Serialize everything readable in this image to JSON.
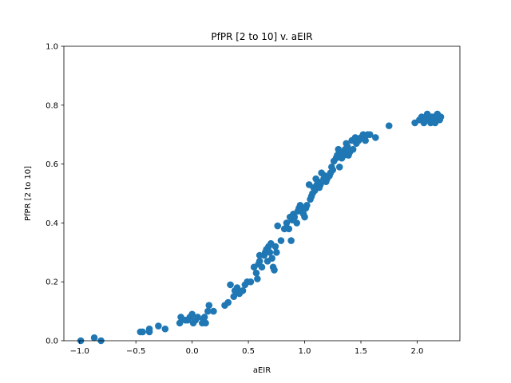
{
  "chart_data": {
    "type": "scatter",
    "title": "PfPR [2 to 10] v. aEIR",
    "xlabel": "aEIR",
    "ylabel": "PfPR [2 to 10]",
    "xlim": [
      -1.14,
      2.38
    ],
    "ylim": [
      0.0,
      1.0
    ],
    "xticks": [
      -1.0,
      -0.5,
      0.0,
      0.5,
      1.0,
      1.5,
      2.0
    ],
    "xtick_labels": [
      "−1.0",
      "−0.5",
      "0.0",
      "0.5",
      "1.0",
      "1.5",
      "2.0"
    ],
    "yticks": [
      0.0,
      0.2,
      0.4,
      0.6,
      0.8,
      1.0
    ],
    "ytick_labels": [
      "0.0",
      "0.2",
      "0.4",
      "0.6",
      "0.8",
      "1.0"
    ],
    "grid": false,
    "marker_color": "#1f77b4",
    "x": [
      -0.99,
      -0.87,
      -0.81,
      -0.46,
      -0.44,
      -0.38,
      -0.38,
      -0.3,
      -0.24,
      -0.11,
      -0.1,
      -0.06,
      -0.04,
      -0.02,
      0.0,
      0.01,
      0.03,
      0.05,
      0.09,
      0.1,
      0.11,
      0.12,
      0.14,
      0.15,
      0.19,
      0.29,
      0.32,
      0.34,
      0.37,
      0.38,
      0.4,
      0.42,
      0.45,
      0.47,
      0.49,
      0.52,
      0.55,
      0.57,
      0.58,
      0.59,
      0.6,
      0.6,
      0.62,
      0.64,
      0.65,
      0.66,
      0.67,
      0.68,
      0.69,
      0.7,
      0.71,
      0.72,
      0.73,
      0.74,
      0.75,
      0.76,
      0.79,
      0.82,
      0.84,
      0.86,
      0.87,
      0.88,
      0.89,
      0.9,
      0.91,
      0.93,
      0.94,
      0.95,
      0.96,
      0.97,
      0.98,
      0.99,
      1.0,
      1.01,
      1.02,
      1.04,
      1.05,
      1.06,
      1.07,
      1.08,
      1.09,
      1.1,
      1.11,
      1.12,
      1.13,
      1.14,
      1.15,
      1.17,
      1.18,
      1.19,
      1.2,
      1.22,
      1.23,
      1.24,
      1.25,
      1.26,
      1.28,
      1.29,
      1.3,
      1.31,
      1.33,
      1.34,
      1.35,
      1.36,
      1.37,
      1.38,
      1.39,
      1.4,
      1.42,
      1.43,
      1.45,
      1.46,
      1.48,
      1.5,
      1.52,
      1.54,
      1.56,
      1.58,
      1.63,
      1.75,
      1.98,
      2.02,
      2.04,
      2.06,
      2.07,
      2.08,
      2.09,
      2.1,
      2.11,
      2.12,
      2.13,
      2.14,
      2.15,
      2.16,
      2.17,
      2.18,
      2.19,
      2.2,
      2.21
    ],
    "y": [
      0.0,
      0.01,
      0.0,
      0.03,
      0.03,
      0.04,
      0.03,
      0.05,
      0.04,
      0.06,
      0.08,
      0.07,
      0.07,
      0.08,
      0.09,
      0.06,
      0.07,
      0.08,
      0.06,
      0.07,
      0.08,
      0.06,
      0.1,
      0.12,
      0.1,
      0.12,
      0.13,
      0.19,
      0.15,
      0.17,
      0.18,
      0.16,
      0.17,
      0.19,
      0.2,
      0.2,
      0.25,
      0.23,
      0.21,
      0.26,
      0.27,
      0.29,
      0.25,
      0.29,
      0.3,
      0.31,
      0.27,
      0.32,
      0.3,
      0.33,
      0.28,
      0.25,
      0.24,
      0.32,
      0.3,
      0.39,
      0.34,
      0.38,
      0.4,
      0.38,
      0.42,
      0.34,
      0.41,
      0.43,
      0.42,
      0.4,
      0.44,
      0.45,
      0.46,
      0.44,
      0.45,
      0.43,
      0.42,
      0.45,
      0.46,
      0.53,
      0.48,
      0.49,
      0.5,
      0.52,
      0.51,
      0.55,
      0.53,
      0.54,
      0.52,
      0.53,
      0.57,
      0.55,
      0.56,
      0.54,
      0.55,
      0.56,
      0.57,
      0.59,
      0.58,
      0.61,
      0.62,
      0.63,
      0.65,
      0.59,
      0.62,
      0.64,
      0.63,
      0.65,
      0.67,
      0.66,
      0.63,
      0.64,
      0.68,
      0.65,
      0.69,
      0.67,
      0.68,
      0.69,
      0.7,
      0.68,
      0.7,
      0.7,
      0.69,
      0.73,
      0.74,
      0.75,
      0.76,
      0.74,
      0.75,
      0.76,
      0.77,
      0.76,
      0.75,
      0.74,
      0.76,
      0.75,
      0.76,
      0.74,
      0.75,
      0.77,
      0.76,
      0.75,
      0.76
    ]
  }
}
